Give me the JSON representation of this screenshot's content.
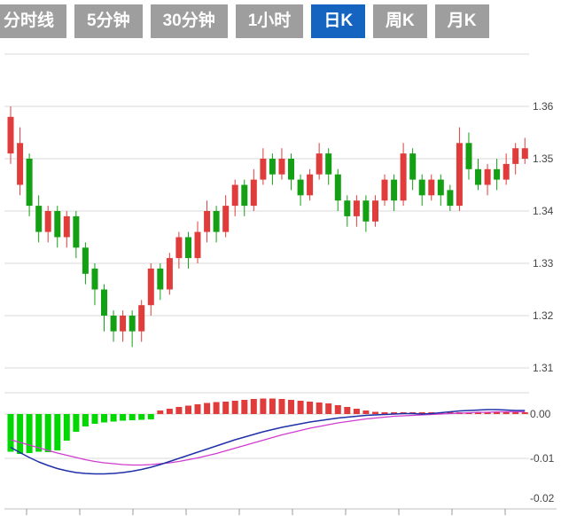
{
  "tabs": [
    {
      "label": "分时线",
      "active": false
    },
    {
      "label": "5分钟",
      "active": false
    },
    {
      "label": "30分钟",
      "active": false
    },
    {
      "label": "1小时",
      "active": false
    },
    {
      "label": "日K",
      "active": true
    },
    {
      "label": "周K",
      "active": false
    },
    {
      "label": "月K",
      "active": false
    }
  ],
  "colors": {
    "tab_bg": "#9e9e9e",
    "tab_active_bg": "#1565c0",
    "tab_text": "#ffffff",
    "up": "#e03c3c",
    "down": "#14a014",
    "hist_up": "#e03c3c",
    "hist_down": "#00d800",
    "dif_line": "#2030a8",
    "dea_line": "#cf3ccf",
    "grid": "#d9d9d9",
    "axis_text": "#444444"
  },
  "chart_data": {
    "type": "candlestick_with_macd",
    "price_panel": {
      "y_ticks": [
        {
          "label": "1.36",
          "value": 1.36
        },
        {
          "label": "1.35",
          "value": 1.35
        },
        {
          "label": "1.34",
          "value": 1.34
        },
        {
          "label": "1.33",
          "value": 1.33
        },
        {
          "label": "1.32",
          "value": 1.32
        },
        {
          "label": "1.31",
          "value": 1.31
        }
      ],
      "ylim": [
        1.308,
        1.372
      ],
      "candle_format": [
        "open",
        "close",
        "low",
        "high"
      ],
      "candles": [
        [
          1.351,
          1.358,
          1.349,
          1.36
        ],
        [
          1.345,
          1.353,
          1.343,
          1.356
        ],
        [
          1.35,
          1.341,
          1.339,
          1.351
        ],
        [
          1.341,
          1.336,
          1.334,
          1.343
        ],
        [
          1.336,
          1.34,
          1.334,
          1.341
        ],
        [
          1.34,
          1.335,
          1.333,
          1.341
        ],
        [
          1.335,
          1.339,
          1.333,
          1.34
        ],
        [
          1.339,
          1.333,
          1.331,
          1.34
        ],
        [
          1.333,
          1.328,
          1.326,
          1.334
        ],
        [
          1.329,
          1.325,
          1.322,
          1.33
        ],
        [
          1.325,
          1.32,
          1.317,
          1.326
        ],
        [
          1.32,
          1.317,
          1.315,
          1.321
        ],
        [
          1.317,
          1.32,
          1.315,
          1.321
        ],
        [
          1.32,
          1.317,
          1.314,
          1.321
        ],
        [
          1.317,
          1.322,
          1.315,
          1.323
        ],
        [
          1.322,
          1.329,
          1.32,
          1.33
        ],
        [
          1.329,
          1.325,
          1.323,
          1.33
        ],
        [
          1.325,
          1.331,
          1.324,
          1.332
        ],
        [
          1.331,
          1.335,
          1.329,
          1.336
        ],
        [
          1.335,
          1.331,
          1.329,
          1.336
        ],
        [
          1.331,
          1.336,
          1.33,
          1.338
        ],
        [
          1.336,
          1.34,
          1.334,
          1.342
        ],
        [
          1.34,
          1.336,
          1.334,
          1.341
        ],
        [
          1.336,
          1.341,
          1.335,
          1.343
        ],
        [
          1.341,
          1.345,
          1.339,
          1.346
        ],
        [
          1.345,
          1.341,
          1.339,
          1.346
        ],
        [
          1.341,
          1.346,
          1.34,
          1.348
        ],
        [
          1.346,
          1.35,
          1.345,
          1.352
        ],
        [
          1.35,
          1.347,
          1.345,
          1.351
        ],
        [
          1.347,
          1.35,
          1.346,
          1.352
        ],
        [
          1.35,
          1.346,
          1.344,
          1.351
        ],
        [
          1.346,
          1.343,
          1.341,
          1.347
        ],
        [
          1.343,
          1.347,
          1.342,
          1.348
        ],
        [
          1.347,
          1.351,
          1.346,
          1.353
        ],
        [
          1.351,
          1.347,
          1.345,
          1.352
        ],
        [
          1.347,
          1.342,
          1.34,
          1.348
        ],
        [
          1.342,
          1.339,
          1.337,
          1.343
        ],
        [
          1.339,
          1.342,
          1.337,
          1.343
        ],
        [
          1.342,
          1.338,
          1.336,
          1.343
        ],
        [
          1.338,
          1.342,
          1.337,
          1.343
        ],
        [
          1.342,
          1.346,
          1.341,
          1.347
        ],
        [
          1.346,
          1.342,
          1.34,
          1.347
        ],
        [
          1.342,
          1.351,
          1.341,
          1.353
        ],
        [
          1.351,
          1.346,
          1.344,
          1.352
        ],
        [
          1.346,
          1.343,
          1.341,
          1.347
        ],
        [
          1.343,
          1.346,
          1.342,
          1.347
        ],
        [
          1.346,
          1.343,
          1.341,
          1.347
        ],
        [
          1.344,
          1.341,
          1.34,
          1.345
        ],
        [
          1.341,
          1.353,
          1.34,
          1.356
        ],
        [
          1.353,
          1.348,
          1.346,
          1.355
        ],
        [
          1.348,
          1.345,
          1.344,
          1.35
        ],
        [
          1.345,
          1.348,
          1.343,
          1.349
        ],
        [
          1.348,
          1.346,
          1.344,
          1.35
        ],
        [
          1.346,
          1.349,
          1.345,
          1.351
        ],
        [
          1.349,
          1.352,
          1.347,
          1.353
        ],
        [
          1.35,
          1.352,
          1.349,
          1.354
        ]
      ]
    },
    "macd_panel": {
      "y_ticks": [
        {
          "label": "0.00",
          "value": 0
        },
        {
          "label": "-0.01",
          "value": -0.01
        },
        {
          "label": "-0.02",
          "value": -0.02
        }
      ],
      "ylim": [
        -0.022,
        0.004
      ],
      "histogram": [
        -0.0085,
        -0.009,
        -0.0088,
        -0.0085,
        -0.0086,
        -0.0082,
        -0.006,
        -0.004,
        -0.0028,
        -0.0022,
        -0.0019,
        -0.0017,
        -0.0015,
        -0.0014,
        -0.0013,
        -0.0012,
        0.0008,
        0.0012,
        0.0016,
        0.0019,
        0.0022,
        0.0025,
        0.0027,
        0.0028,
        0.003,
        0.0032,
        0.0034,
        0.0035,
        0.0035,
        0.0034,
        0.0032,
        0.003,
        0.0028,
        0.0026,
        0.0024,
        0.002,
        0.0016,
        0.0012,
        0.0008,
        0.0005,
        0.0004,
        0.0004,
        0.0004,
        0.0004,
        0.0004,
        0.0004,
        0.0004,
        0.0004,
        0.0004,
        0.0004,
        0.0004,
        0.0004,
        0.0004,
        0.0004,
        0.0004,
        0.0004
      ],
      "dif": [
        -0.0075,
        -0.0087,
        -0.0098,
        -0.0108,
        -0.0116,
        -0.0123,
        -0.0128,
        -0.0132,
        -0.0134,
        -0.0135,
        -0.0135,
        -0.0134,
        -0.0132,
        -0.0129,
        -0.0125,
        -0.012,
        -0.0114,
        -0.0107,
        -0.01,
        -0.0093,
        -0.0086,
        -0.0079,
        -0.0072,
        -0.0065,
        -0.0058,
        -0.0052,
        -0.0046,
        -0.004,
        -0.0035,
        -0.003,
        -0.0026,
        -0.0022,
        -0.0018,
        -0.0015,
        -0.0012,
        -0.0009,
        -0.0007,
        -0.0005,
        -0.0003,
        -0.0002,
        -0.0001,
        0.0,
        0.0001,
        0.0001,
        0.0,
        0.0001,
        0.0003,
        0.0005,
        0.0007,
        0.0008,
        0.0009,
        0.001,
        0.001,
        0.0009,
        0.0008,
        0.0008
      ],
      "dea": [
        -0.0058,
        -0.0064,
        -0.007,
        -0.0076,
        -0.0082,
        -0.0088,
        -0.0093,
        -0.0098,
        -0.0103,
        -0.0107,
        -0.011,
        -0.0112,
        -0.0114,
        -0.0115,
        -0.0115,
        -0.0114,
        -0.0112,
        -0.011,
        -0.0107,
        -0.0103,
        -0.0099,
        -0.0094,
        -0.0089,
        -0.0083,
        -0.0077,
        -0.0071,
        -0.0065,
        -0.0059,
        -0.0053,
        -0.0047,
        -0.0042,
        -0.0037,
        -0.0032,
        -0.0028,
        -0.0024,
        -0.002,
        -0.0017,
        -0.0014,
        -0.0011,
        -0.0009,
        -0.0007,
        -0.0005,
        -0.0004,
        -0.0003,
        -0.0002,
        -0.0001,
        0.0,
        0.0001,
        0.0002,
        0.0003,
        0.0004,
        0.0004,
        0.0005,
        0.0005,
        0.0005,
        0.0005
      ]
    }
  }
}
